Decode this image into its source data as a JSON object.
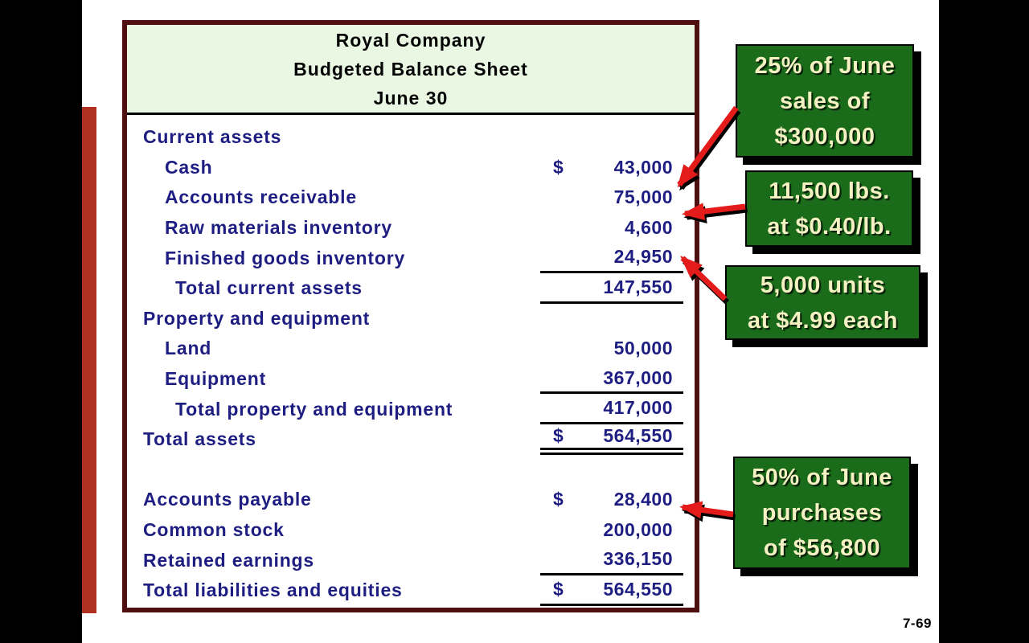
{
  "page": {
    "page_number": "7-69"
  },
  "balance_sheet": {
    "title_lines": [
      "Royal Company",
      "Budgeted Balance Sheet",
      "June 30"
    ],
    "rows": [
      {
        "label": "Current assets",
        "indent": 0,
        "dollar": "",
        "amount": "",
        "underline": "none"
      },
      {
        "label": "Cash",
        "indent": 1,
        "dollar": "$",
        "amount": "43,000",
        "underline": "none"
      },
      {
        "label": "Accounts receivable",
        "indent": 1,
        "dollar": "",
        "amount": "75,000",
        "underline": "none"
      },
      {
        "label": "Raw materials inventory",
        "indent": 1,
        "dollar": "",
        "amount": "4,600",
        "underline": "none"
      },
      {
        "label": "Finished goods inventory",
        "indent": 1,
        "dollar": "",
        "amount": "24,950",
        "underline": "single"
      },
      {
        "label": "Total current assets",
        "indent": 2,
        "dollar": "",
        "amount": "147,550",
        "underline": "single"
      },
      {
        "label": "Property and equipment",
        "indent": 0,
        "dollar": "",
        "amount": "",
        "underline": "none"
      },
      {
        "label": "Land",
        "indent": 1,
        "dollar": "",
        "amount": "50,000",
        "underline": "none"
      },
      {
        "label": "Equipment",
        "indent": 1,
        "dollar": "",
        "amount": "367,000",
        "underline": "single"
      },
      {
        "label": "Total property and equipment",
        "indent": 2,
        "dollar": "",
        "amount": "417,000",
        "underline": "single"
      },
      {
        "label": "Total assets",
        "indent": 0,
        "dollar": "$",
        "amount": "564,550",
        "underline": "double"
      },
      {
        "label": "",
        "indent": 0,
        "dollar": "",
        "amount": "",
        "underline": "none"
      },
      {
        "label": "Accounts payable",
        "indent": 0,
        "dollar": "$",
        "amount": "28,400",
        "underline": "none"
      },
      {
        "label": "Common stock",
        "indent": 0,
        "dollar": "",
        "amount": "200,000",
        "underline": "none"
      },
      {
        "label": "Retained earnings",
        "indent": 0,
        "dollar": "",
        "amount": "336,150",
        "underline": "single"
      },
      {
        "label": "Total liabilities and equities",
        "indent": 0,
        "dollar": "$",
        "amount": "564,550",
        "underline": "single"
      }
    ]
  },
  "callouts": [
    {
      "name": "callout-accounts-receivable",
      "lines": [
        "25% of June",
        "sales of",
        "$300,000"
      ],
      "points_to": "Accounts receivable 75,000"
    },
    {
      "name": "callout-raw-materials",
      "lines": [
        "11,500 lbs.",
        "at $0.40/lb."
      ],
      "points_to": "Raw materials inventory 4,600"
    },
    {
      "name": "callout-finished-goods",
      "lines": [
        "5,000 units",
        "at $4.99 each"
      ],
      "points_to": "Finished goods inventory 24,950"
    },
    {
      "name": "callout-accounts-payable",
      "lines": [
        "50% of June",
        "purchases",
        "of $56,800"
      ],
      "points_to": "Accounts payable 28,400"
    }
  ],
  "colors": {
    "table_border": "#4e1010",
    "header_bg": "#e9f7e3",
    "text_navy": "#1e1e82",
    "accent_bar": "#b03122",
    "callout_bg": "#1a6b1a",
    "callout_text": "#f4f2c2",
    "arrow": "#e31b1b"
  }
}
